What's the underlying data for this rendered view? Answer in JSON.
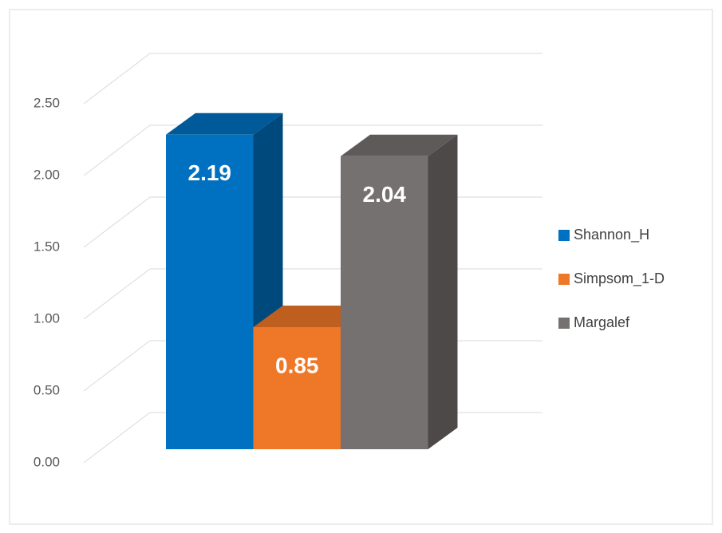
{
  "chart_data": {
    "type": "bar3d",
    "categories": [
      null
    ],
    "series": [
      {
        "name": "Shannon_H",
        "color": "#0070c0",
        "values": [
          2.19
        ]
      },
      {
        "name": "Simpsom_1-D",
        "color": "#ee7728",
        "values": [
          0.85
        ]
      },
      {
        "name": "Margalef",
        "color": "#767171",
        "values": [
          2.04
        ]
      }
    ],
    "ylim": [
      0,
      2.5
    ],
    "yticks": [
      {
        "value": 0,
        "label": "0.00"
      },
      {
        "value": 0.5,
        "label": "0.50"
      },
      {
        "value": 1,
        "label": "1.00"
      },
      {
        "value": 1.5,
        "label": "1.50"
      },
      {
        "value": 2,
        "label": "2.00"
      },
      {
        "value": 2.5,
        "label": "2.50"
      }
    ],
    "grid": true,
    "legend": "right"
  }
}
